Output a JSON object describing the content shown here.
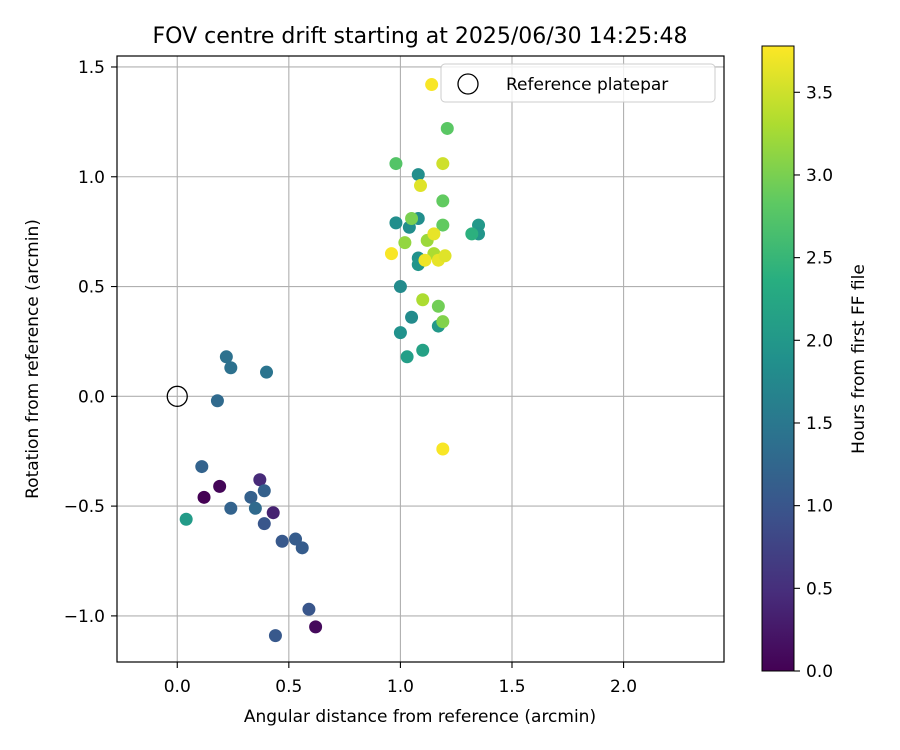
{
  "chart_data": {
    "type": "scatter",
    "title": "FOV centre drift starting at 2025/06/30 14:25:48",
    "xlabel": "Angular distance from reference (arcmin)",
    "ylabel": "Rotation from reference (arcmin)",
    "xlim": [
      -0.27,
      2.45
    ],
    "ylim": [
      -1.21,
      1.55
    ],
    "xticks": [
      0.0,
      0.5,
      1.0,
      1.5,
      2.0
    ],
    "xtick_labels": [
      "0.0",
      "0.5",
      "1.0",
      "1.5",
      "2.0"
    ],
    "yticks": [
      -1.0,
      -0.5,
      0.0,
      0.5,
      1.0,
      1.5
    ],
    "ytick_labels": [
      "−1.0",
      "−0.5",
      "0.0",
      "0.5",
      "1.0",
      "1.5"
    ],
    "grid": true,
    "legend": {
      "placement": "top-right",
      "entries": [
        "Reference platepar"
      ]
    },
    "reference": {
      "x": 0.0,
      "y": 0.0
    },
    "colorbar": {
      "label": "Hours from first FF file",
      "min": 0.0,
      "max": 3.78,
      "colormap": "viridis",
      "ticks": [
        0.0,
        0.5,
        1.0,
        1.5,
        2.0,
        2.5,
        3.0,
        3.5
      ],
      "tick_labels": [
        "0.0",
        "0.5",
        "1.0",
        "1.5",
        "2.0",
        "2.5",
        "3.0",
        "3.5"
      ]
    },
    "points": [
      {
        "x": 0.12,
        "y": -0.46,
        "hours": 0.0
      },
      {
        "x": 0.19,
        "y": -0.41,
        "hours": 0.05
      },
      {
        "x": 0.62,
        "y": -1.05,
        "hours": 0.1
      },
      {
        "x": 0.43,
        "y": -0.53,
        "hours": 0.35
      },
      {
        "x": 0.37,
        "y": -0.38,
        "hours": 0.45
      },
      {
        "x": 0.44,
        "y": -1.09,
        "hours": 1.05
      },
      {
        "x": 0.59,
        "y": -0.97,
        "hours": 1.0
      },
      {
        "x": 0.39,
        "y": -0.58,
        "hours": 1.0
      },
      {
        "x": 0.47,
        "y": -0.66,
        "hours": 1.05
      },
      {
        "x": 0.53,
        "y": -0.65,
        "hours": 1.1
      },
      {
        "x": 0.56,
        "y": -0.69,
        "hours": 1.1
      },
      {
        "x": 0.33,
        "y": -0.46,
        "hours": 1.15
      },
      {
        "x": 0.39,
        "y": -0.43,
        "hours": 1.15
      },
      {
        "x": 0.11,
        "y": -0.32,
        "hours": 1.2
      },
      {
        "x": 0.24,
        "y": -0.51,
        "hours": 1.2
      },
      {
        "x": 0.35,
        "y": -0.51,
        "hours": 1.3
      },
      {
        "x": 0.18,
        "y": -0.02,
        "hours": 1.3
      },
      {
        "x": 0.22,
        "y": 0.18,
        "hours": 1.4
      },
      {
        "x": 0.24,
        "y": 0.13,
        "hours": 1.4
      },
      {
        "x": 0.4,
        "y": 0.11,
        "hours": 1.45
      },
      {
        "x": 0.04,
        "y": -0.56,
        "hours": 2.05
      },
      {
        "x": 0.98,
        "y": 0.79,
        "hours": 1.85
      },
      {
        "x": 1.04,
        "y": 0.77,
        "hours": 1.85
      },
      {
        "x": 1.08,
        "y": 0.81,
        "hours": 1.85
      },
      {
        "x": 1.08,
        "y": 1.01,
        "hours": 1.85
      },
      {
        "x": 1.08,
        "y": 0.63,
        "hours": 1.9
      },
      {
        "x": 1.08,
        "y": 0.6,
        "hours": 1.95
      },
      {
        "x": 1.0,
        "y": 0.5,
        "hours": 1.8
      },
      {
        "x": 1.05,
        "y": 0.36,
        "hours": 1.8
      },
      {
        "x": 1.0,
        "y": 0.29,
        "hours": 1.9
      },
      {
        "x": 1.03,
        "y": 0.18,
        "hours": 2.1
      },
      {
        "x": 1.1,
        "y": 0.21,
        "hours": 2.15
      },
      {
        "x": 1.17,
        "y": 0.32,
        "hours": 2.0
      },
      {
        "x": 1.35,
        "y": 0.78,
        "hours": 2.0
      },
      {
        "x": 1.35,
        "y": 0.74,
        "hours": 1.95
      },
      {
        "x": 1.32,
        "y": 0.74,
        "hours": 2.4
      },
      {
        "x": 0.98,
        "y": 1.06,
        "hours": 2.75
      },
      {
        "x": 1.21,
        "y": 1.22,
        "hours": 2.8
      },
      {
        "x": 1.19,
        "y": 0.89,
        "hours": 2.85
      },
      {
        "x": 1.19,
        "y": 0.78,
        "hours": 2.85
      },
      {
        "x": 1.05,
        "y": 0.81,
        "hours": 3.0
      },
      {
        "x": 1.17,
        "y": 0.41,
        "hours": 2.95
      },
      {
        "x": 1.19,
        "y": 0.34,
        "hours": 3.05
      },
      {
        "x": 1.02,
        "y": 0.7,
        "hours": 3.15
      },
      {
        "x": 1.1,
        "y": 0.44,
        "hours": 3.3
      },
      {
        "x": 1.12,
        "y": 0.71,
        "hours": 3.2
      },
      {
        "x": 1.15,
        "y": 0.65,
        "hours": 3.3
      },
      {
        "x": 1.19,
        "y": 1.06,
        "hours": 3.5
      },
      {
        "x": 1.09,
        "y": 0.96,
        "hours": 3.6
      },
      {
        "x": 1.15,
        "y": 0.74,
        "hours": 3.65
      },
      {
        "x": 1.17,
        "y": 0.62,
        "hours": 3.65
      },
      {
        "x": 1.2,
        "y": 0.64,
        "hours": 3.6
      },
      {
        "x": 1.11,
        "y": 0.62,
        "hours": 3.7
      },
      {
        "x": 0.96,
        "y": 0.65,
        "hours": 3.75
      },
      {
        "x": 1.14,
        "y": 1.42,
        "hours": 3.75
      },
      {
        "x": 1.19,
        "y": -0.24,
        "hours": 3.75
      }
    ]
  }
}
